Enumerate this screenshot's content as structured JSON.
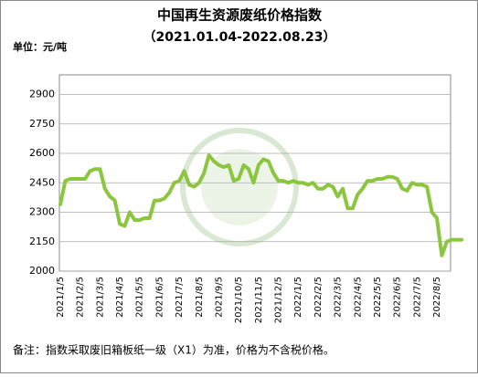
{
  "chart_data": {
    "type": "line",
    "title": "中国再生资源废纸价格指数",
    "subtitle": "（2021.01.04-2022.08.23）",
    "unit_label": "单位：元/吨",
    "note": "备注：指数采取废旧箱板纸一级（X1）为准，价格为不含税价格。",
    "categories": [
      "2021/1/5",
      null,
      null,
      null,
      "2021/2/5",
      null,
      null,
      null,
      "2021/3/5",
      null,
      null,
      null,
      "2021/4/5",
      null,
      null,
      null,
      "2021/5/5",
      null,
      null,
      null,
      "2021/6/5",
      null,
      null,
      null,
      "2021/7/5",
      null,
      null,
      null,
      "2021/8/5",
      null,
      null,
      null,
      "2021/9/5",
      null,
      null,
      null,
      "2021/10/5",
      null,
      null,
      null,
      "2021/11/5",
      null,
      null,
      null,
      "2021/12/5",
      null,
      null,
      null,
      "2022/1/5",
      null,
      null,
      null,
      "2022/2/5",
      null,
      null,
      null,
      "2022/3/5",
      null,
      null,
      null,
      "2022/4/5",
      null,
      null,
      null,
      "2022/5/5",
      null,
      null,
      null,
      "2022/6/5",
      null,
      null,
      null,
      "2022/7/5",
      null,
      null,
      null,
      "2022/8/5",
      null,
      null,
      null,
      null,
      null
    ],
    "series": [
      {
        "color": "#8cc63e",
        "values": [
          2340,
          2460,
          2470,
          2470,
          2470,
          2470,
          2510,
          2520,
          2520,
          2420,
          2380,
          2360,
          2240,
          2230,
          2300,
          2260,
          2260,
          2270,
          2270,
          2360,
          2360,
          2370,
          2400,
          2450,
          2460,
          2510,
          2440,
          2430,
          2450,
          2500,
          2590,
          2560,
          2540,
          2530,
          2540,
          2460,
          2470,
          2540,
          2520,
          2450,
          2540,
          2570,
          2560,
          2500,
          2460,
          2460,
          2450,
          2460,
          2450,
          2450,
          2440,
          2450,
          2420,
          2420,
          2440,
          2430,
          2380,
          2420,
          2320,
          2320,
          2390,
          2420,
          2460,
          2460,
          2470,
          2470,
          2480,
          2480,
          2470,
          2420,
          2410,
          2450,
          2440,
          2440,
          2430,
          2300,
          2270,
          2080,
          2150,
          2160,
          2160,
          2160
        ]
      }
    ],
    "ylim": [
      2000,
      3000
    ],
    "yticks": [
      2000,
      2150,
      2300,
      2450,
      2600,
      2750,
      2900
    ],
    "grid": true
  }
}
